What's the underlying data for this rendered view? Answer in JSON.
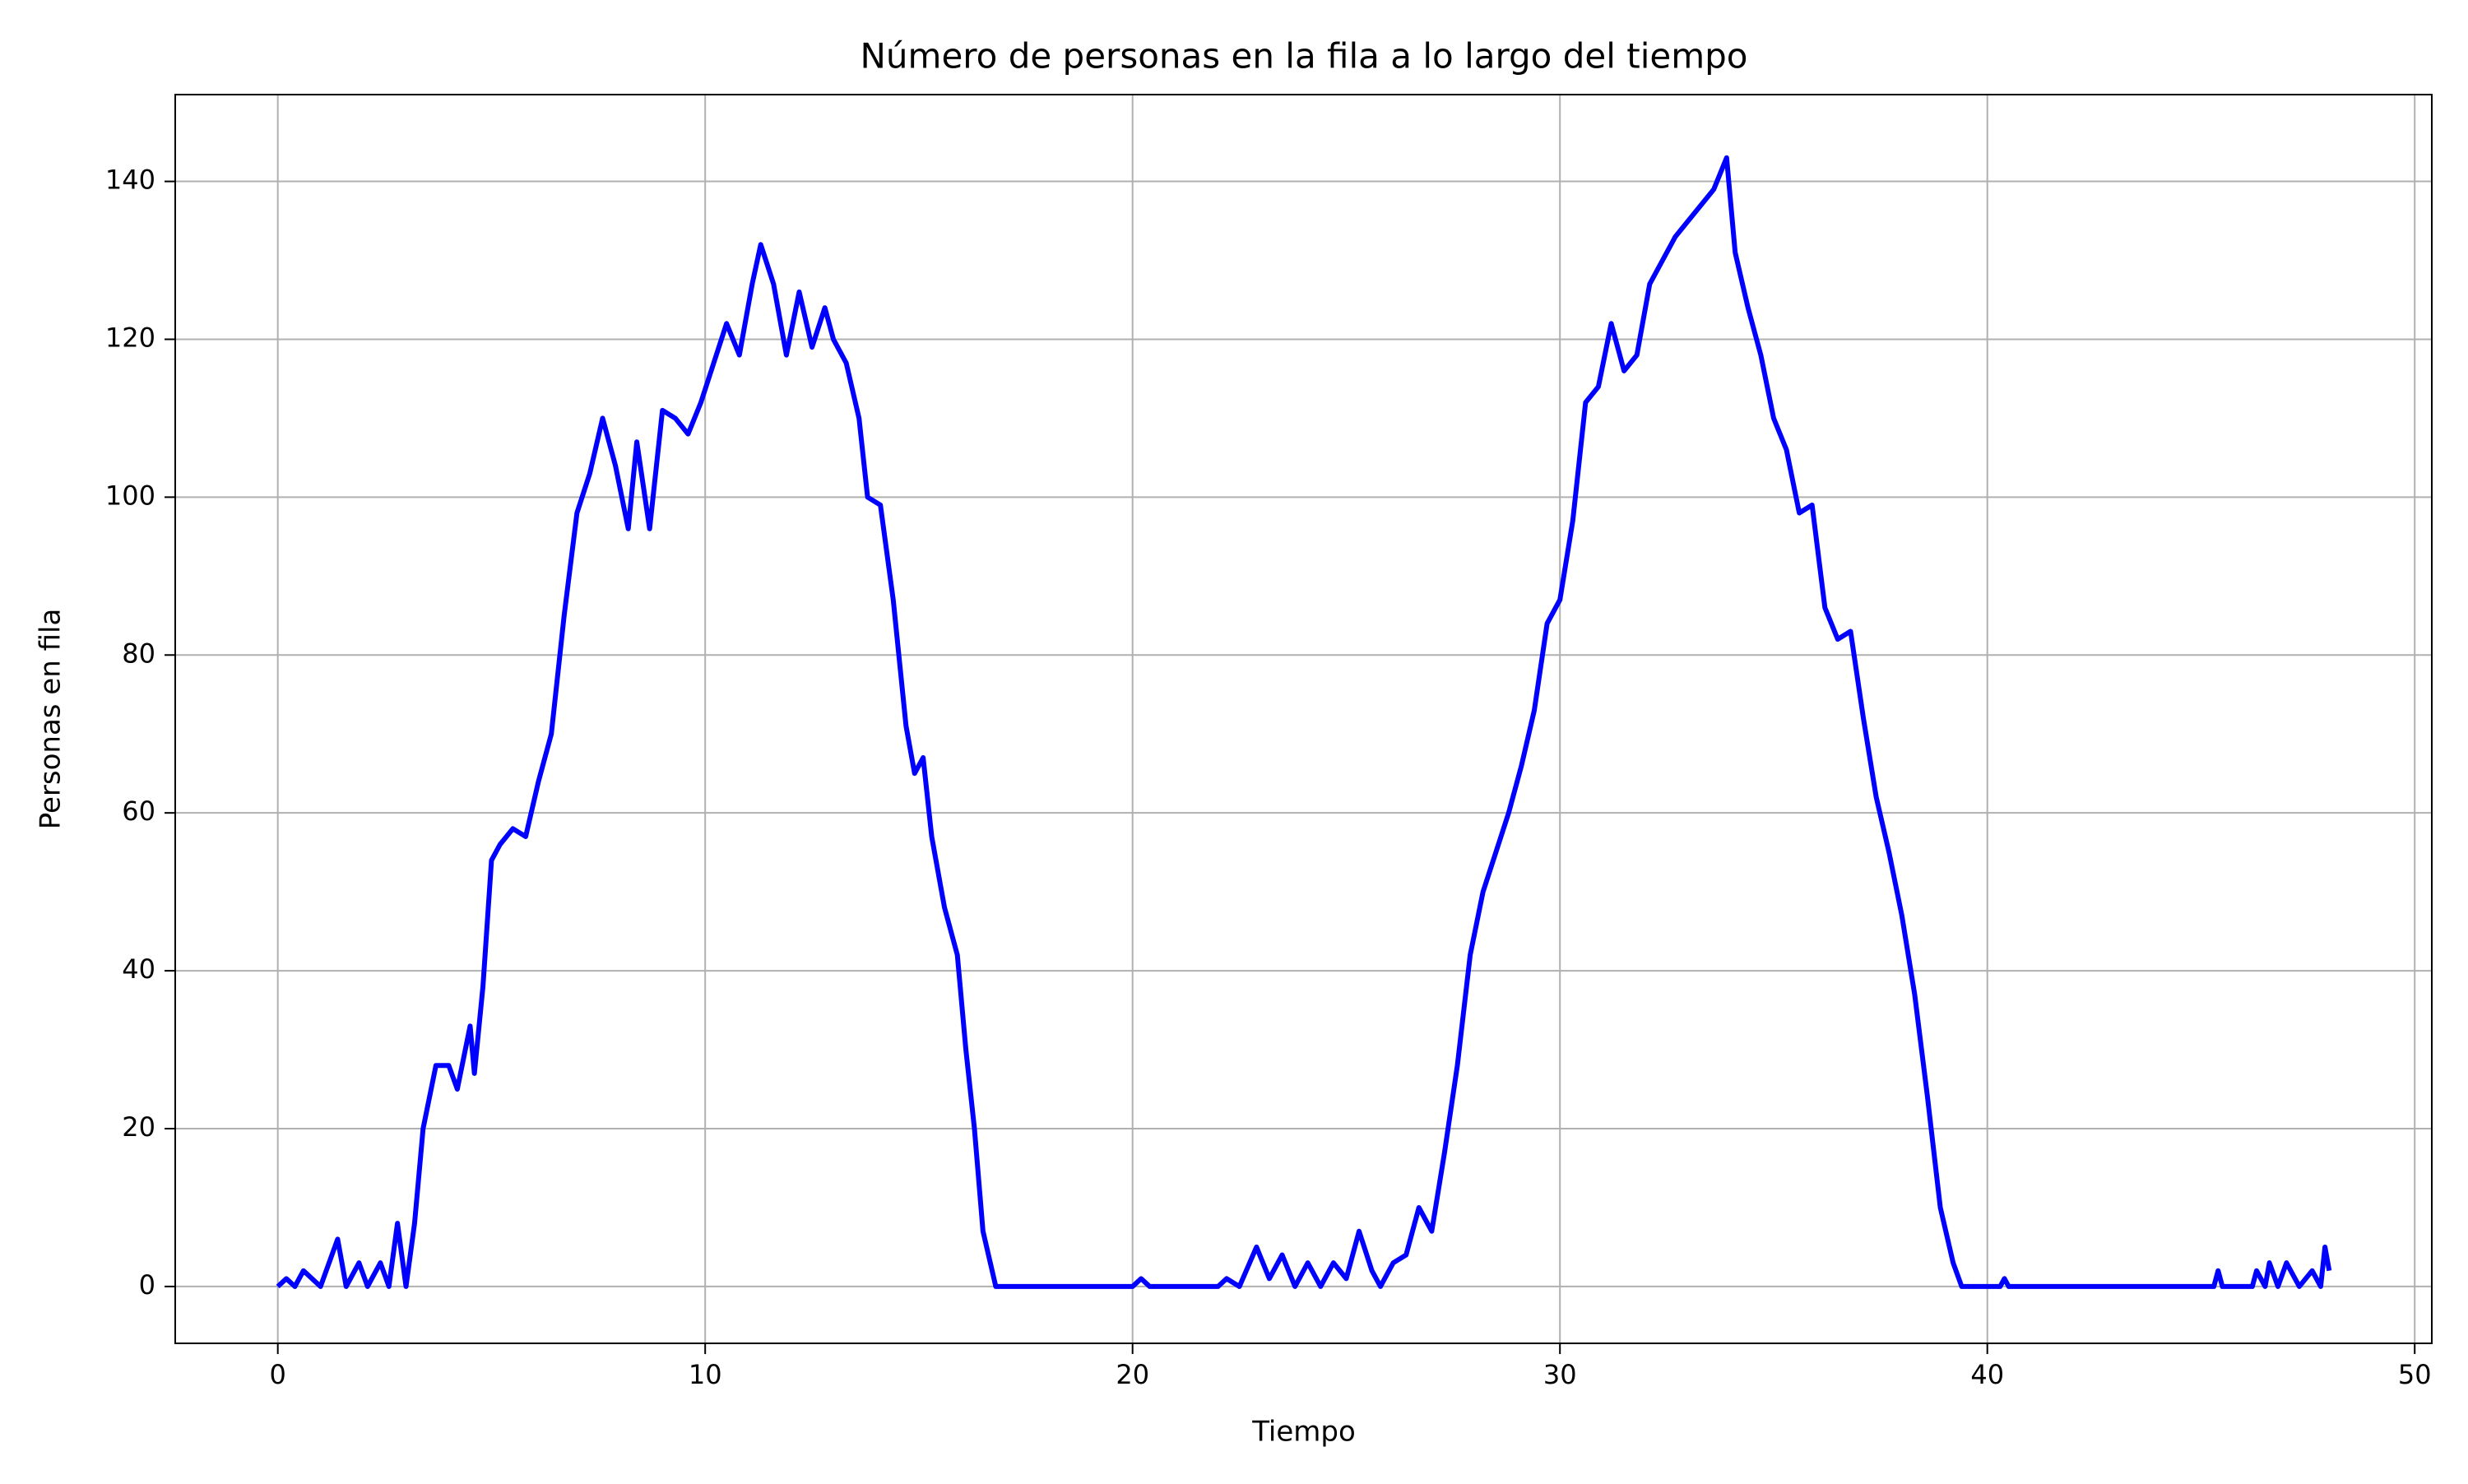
{
  "chart_data": {
    "type": "line",
    "title": "Número de personas en la fila a lo largo del tiempo",
    "xlabel": "Tiempo",
    "ylabel": "Personas en fila",
    "x": [
      0,
      0.2,
      0.4,
      0.6,
      0.8,
      1.0,
      1.4,
      1.6,
      1.9,
      2.1,
      2.4,
      2.6,
      2.8,
      3.0,
      3.2,
      3.4,
      3.7,
      4.0,
      4.2,
      4.5,
      4.6,
      4.8,
      5.0,
      5.2,
      5.5,
      5.8,
      6.1,
      6.4,
      6.7,
      7.0,
      7.3,
      7.6,
      7.9,
      8.2,
      8.4,
      8.7,
      9.0,
      9.3,
      9.6,
      9.9,
      10.2,
      10.5,
      10.8,
      11.1,
      11.3,
      11.6,
      11.9,
      12.2,
      12.5,
      12.8,
      13.0,
      13.3,
      13.6,
      13.8,
      14.1,
      14.4,
      14.7,
      14.9,
      15.1,
      15.3,
      15.6,
      15.9,
      16.1,
      16.3,
      16.5,
      16.8,
      20.0,
      20.2,
      20.4,
      22.0,
      22.2,
      22.5,
      22.9,
      23.2,
      23.5,
      23.8,
      24.1,
      24.4,
      24.7,
      25.0,
      25.3,
      25.6,
      25.8,
      26.1,
      26.4,
      26.7,
      27.0,
      27.3,
      27.6,
      27.9,
      28.2,
      28.5,
      28.8,
      29.1,
      29.4,
      29.7,
      30.0,
      30.3,
      30.6,
      30.9,
      31.2,
      31.5,
      31.8,
      32.1,
      32.4,
      32.7,
      33.0,
      33.3,
      33.6,
      33.9,
      34.1,
      34.4,
      34.7,
      35.0,
      35.3,
      35.6,
      35.9,
      36.2,
      36.5,
      36.8,
      37.1,
      37.4,
      37.7,
      38.0,
      38.3,
      38.6,
      38.9,
      39.2,
      39.4,
      40.3,
      40.4,
      40.5,
      45.3,
      45.4,
      45.5,
      46.2,
      46.3,
      46.5,
      46.6,
      46.8,
      47.0,
      47.3,
      47.6,
      47.8,
      47.9,
      48.0
    ],
    "values": [
      0,
      1,
      0,
      2,
      1,
      0,
      6,
      0,
      3,
      0,
      3,
      0,
      8,
      0,
      8,
      20,
      28,
      28,
      25,
      33,
      27,
      38,
      54,
      56,
      58,
      57,
      64,
      70,
      85,
      98,
      103,
      110,
      104,
      96,
      107,
      96,
      111,
      110,
      108,
      112,
      117,
      122,
      118,
      127,
      132,
      127,
      118,
      126,
      119,
      124,
      120,
      117,
      110,
      100,
      99,
      87,
      71,
      65,
      67,
      57,
      48,
      42,
      30,
      20,
      7,
      0,
      0,
      1,
      0,
      0,
      1,
      0,
      5,
      1,
      4,
      0,
      3,
      0,
      3,
      1,
      7,
      2,
      0,
      3,
      4,
      10,
      7,
      17,
      28,
      42,
      50,
      55,
      60,
      66,
      73,
      84,
      87,
      97,
      112,
      114,
      122,
      116,
      118,
      127,
      130,
      133,
      135,
      137,
      139,
      143,
      131,
      124,
      118,
      110,
      106,
      98,
      99,
      86,
      82,
      83,
      72,
      62,
      55,
      47,
      37,
      24,
      10,
      3,
      0,
      0,
      1,
      0,
      0,
      2,
      0,
      0,
      2,
      0,
      3,
      0,
      3,
      0,
      2,
      0,
      5,
      2
    ],
    "color": "#0000ff",
    "xlim": [
      -2.4,
      50.4
    ],
    "xticks": [
      0,
      10,
      20,
      30,
      40,
      50
    ],
    "ylim": [
      -7.2,
      151
    ],
    "yticks": [
      0,
      20,
      40,
      60,
      80,
      100,
      120,
      140
    ],
    "grid": true
  }
}
